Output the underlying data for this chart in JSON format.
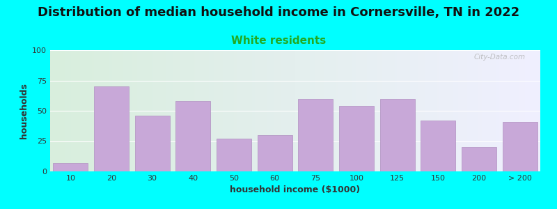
{
  "title": "Distribution of median household income in Cornersville, TN in 2022",
  "subtitle": "White residents",
  "xlabel": "household income ($1000)",
  "ylabel": "households",
  "bg_color": "#00FFFF",
  "plot_bg_gradient_left": "#d8eedd",
  "plot_bg_gradient_right": "#f0f0ff",
  "bar_color": "#c8a8d8",
  "bar_edge_color": "#b090c0",
  "categories": [
    "10",
    "20",
    "30",
    "40",
    "50",
    "60",
    "75",
    "100",
    "125",
    "150",
    "200",
    "> 200"
  ],
  "values": [
    7,
    70,
    46,
    58,
    27,
    30,
    60,
    54,
    60,
    42,
    20,
    41
  ],
  "ylim": [
    0,
    100
  ],
  "yticks": [
    0,
    25,
    50,
    75,
    100
  ],
  "title_fontsize": 13,
  "subtitle_fontsize": 11,
  "subtitle_color": "#22aa22",
  "axis_label_fontsize": 9,
  "tick_fontsize": 8,
  "watermark_text": "City-Data.com",
  "title_color": "#111111"
}
